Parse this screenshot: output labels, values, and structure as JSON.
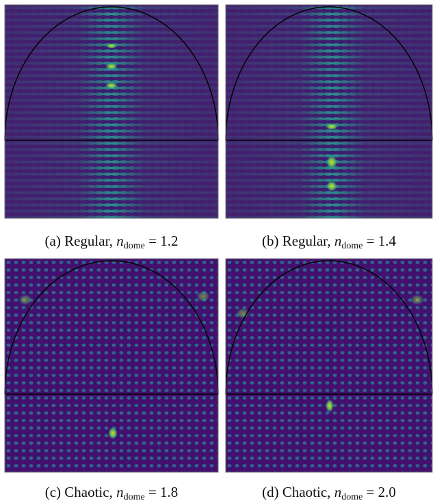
{
  "panels": [
    {
      "label": "(a)",
      "regime": "Regular,",
      "symbol": "n",
      "subscript": "dome",
      "relation": "= 1.2"
    },
    {
      "label": "(b)",
      "regime": "Regular,",
      "symbol": "n",
      "subscript": "dome",
      "relation": "= 1.4"
    },
    {
      "label": "(c)",
      "regime": "Chaotic,",
      "symbol": "n",
      "subscript": "dome",
      "relation": "= 1.8"
    },
    {
      "label": "(d)",
      "regime": "Chaotic,",
      "symbol": "n",
      "subscript": "dome",
      "relation": "= 2.0"
    }
  ]
}
